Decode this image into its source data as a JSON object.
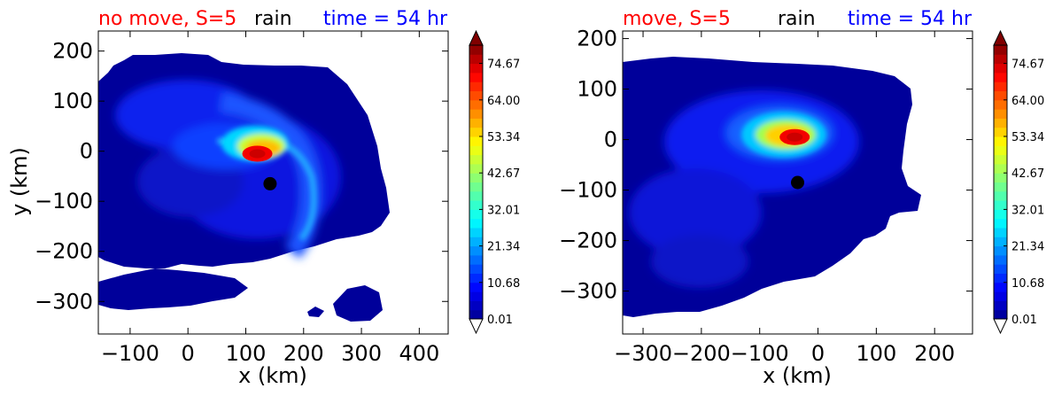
{
  "chart_data": [
    {
      "type": "heatmap",
      "title_left": "no move, S=5",
      "title_center": "rain",
      "title_right": "time = 54 hr",
      "title_colors": {
        "left": "#ff0000",
        "center": "#000000",
        "right": "#0000ff"
      },
      "xlabel": "x (km)",
      "ylabel": "y (km)",
      "xlim": [
        -155,
        450
      ],
      "ylim": [
        -365,
        240
      ],
      "xticks": [
        -100,
        0,
        100,
        200,
        300,
        400
      ],
      "yticks": [
        200,
        100,
        0,
        -100,
        -200,
        -300
      ],
      "xtick_labels": [
        "−100",
        "0",
        "100",
        "200",
        "300",
        "400"
      ],
      "ytick_labels": [
        "200",
        "100",
        "0",
        "−100",
        "−200",
        "−300"
      ],
      "colorbar": {
        "min": 0.01,
        "max": 80,
        "tick_labels": [
          "0.01",
          "10.68",
          "21.34",
          "32.01",
          "42.67",
          "53.34",
          "64.00",
          "74.67"
        ],
        "tick_values": [
          0.01,
          10.68,
          21.34,
          32.01,
          42.67,
          53.34,
          64.0,
          74.67
        ],
        "extend": "both",
        "colormap": "jet"
      },
      "center_marker": {
        "x": 142,
        "y": -65,
        "color": "#000000"
      },
      "peak": {
        "x": 120,
        "y": -5,
        "value": 72
      }
    },
    {
      "type": "heatmap",
      "title_left": "move, S=5",
      "title_center": "rain",
      "title_right": "time = 54 hr",
      "title_colors": {
        "left": "#ff0000",
        "center": "#000000",
        "right": "#0000ff"
      },
      "xlabel": "x (km)",
      "ylabel": "",
      "xlim": [
        -335,
        265
      ],
      "ylim": [
        -385,
        215
      ],
      "xticks": [
        -300,
        -200,
        -100,
        0,
        100,
        200
      ],
      "yticks": [
        200,
        100,
        0,
        -100,
        -200,
        -300
      ],
      "xtick_labels": [
        "−300",
        "−200",
        "−100",
        "0",
        "100",
        "200"
      ],
      "ytick_labels": [
        "200",
        "100",
        "0",
        "−100",
        "−200",
        "−300"
      ],
      "colorbar": {
        "min": 0.01,
        "max": 80,
        "tick_labels": [
          "0.01",
          "10.68",
          "21.34",
          "32.01",
          "42.67",
          "53.34",
          "64.00",
          "74.67"
        ],
        "tick_values": [
          0.01,
          10.68,
          21.34,
          32.01,
          42.67,
          53.34,
          64.0,
          74.67
        ],
        "extend": "both",
        "colormap": "jet"
      },
      "center_marker": {
        "x": -35,
        "y": -85,
        "color": "#000000"
      },
      "peak": {
        "x": -40,
        "y": 5,
        "value": 72
      }
    }
  ]
}
